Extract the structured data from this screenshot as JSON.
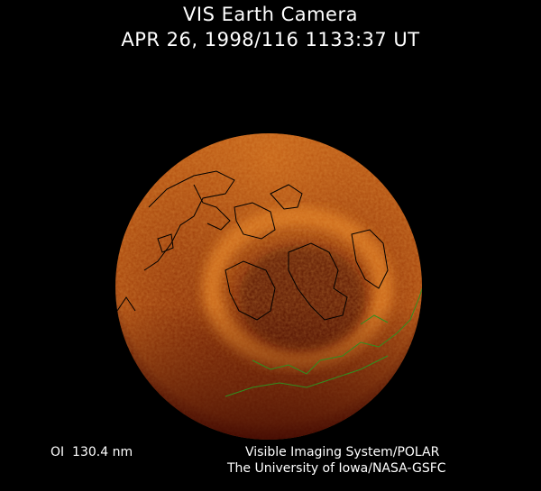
{
  "header": {
    "title": "VIS Earth Camera",
    "timestamp": "APR 26, 1998/116 1133:37 UT"
  },
  "image": {
    "subject": "earth-disc-aurora-oval",
    "colors": {
      "background": "#000000",
      "disc_dark": "#4a0800",
      "disc_bright": "#e07a20",
      "coastline": "#000000",
      "coastline_lit": "#2f8f1f"
    }
  },
  "footer": {
    "band": "OI  130.4 nm",
    "instrument": "Visible Imaging System/POLAR",
    "organization": "The University of Iowa/NASA-GSFC"
  }
}
